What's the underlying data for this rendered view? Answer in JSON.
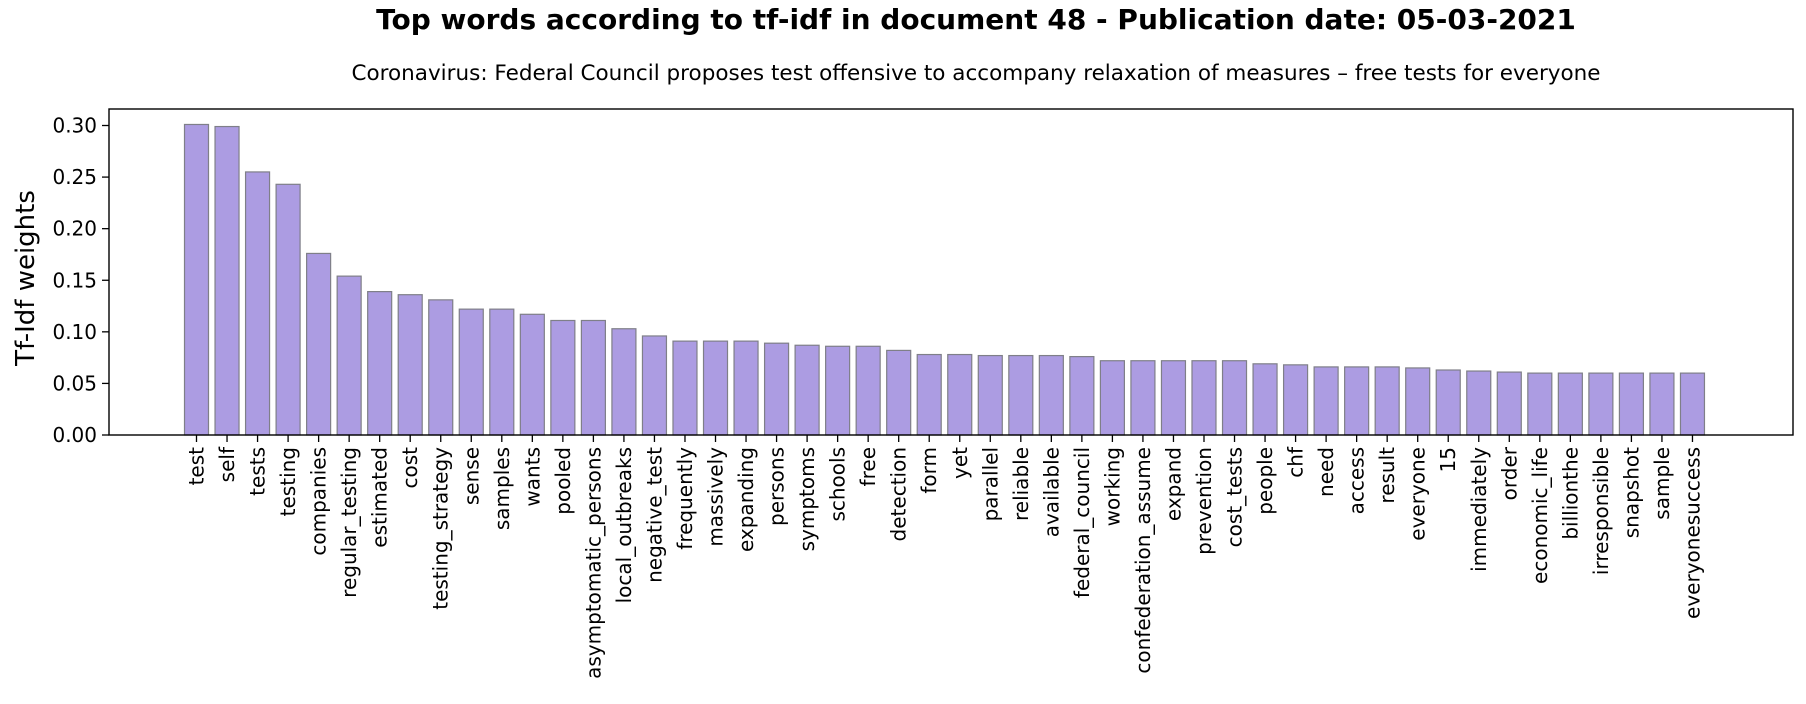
{
  "chart_data": {
    "type": "bar",
    "title": "Top words according to tf-idf in document 48 - Publication date: 05-03-2021",
    "subtitle": "Coronavirus: Federal Council proposes test offensive to accompany relaxation of measures – free tests for everyone",
    "xlabel": "",
    "ylabel": "Tf-Idf weights",
    "ylim": [
      0,
      0.316
    ],
    "yticks": [
      "0.00",
      "0.05",
      "0.10",
      "0.15",
      "0.20",
      "0.25",
      "0.30"
    ],
    "grid": false,
    "bar_color": "#ac9ce2",
    "bar_edge_color": "#7f7f88",
    "categories": [
      "test",
      "self",
      "tests",
      "testing",
      "companies",
      "regular_testing",
      "estimated",
      "cost",
      "testing_strategy",
      "sense",
      "samples",
      "wants",
      "pooled",
      "asymptomatic_persons",
      "local_outbreaks",
      "negative_test",
      "frequently",
      "massively",
      "expanding",
      "persons",
      "symptoms",
      "schools",
      "free",
      "detection",
      "form",
      "yet",
      "parallel",
      "reliable",
      "available",
      "federal_council",
      "working",
      "confederation_assume",
      "expand",
      "prevention",
      "cost_tests",
      "people",
      "chf",
      "need",
      "access",
      "result",
      "everyone",
      "15",
      "immediately",
      "order",
      "economic_life",
      "billionthe",
      "irresponsible",
      "snapshot",
      "sample",
      "everyonesuccess"
    ],
    "values": [
      0.301,
      0.299,
      0.255,
      0.243,
      0.176,
      0.154,
      0.139,
      0.136,
      0.131,
      0.122,
      0.122,
      0.117,
      0.111,
      0.111,
      0.103,
      0.096,
      0.091,
      0.091,
      0.091,
      0.089,
      0.087,
      0.086,
      0.086,
      0.082,
      0.078,
      0.078,
      0.077,
      0.077,
      0.077,
      0.076,
      0.072,
      0.072,
      0.072,
      0.072,
      0.072,
      0.069,
      0.068,
      0.066,
      0.066,
      0.066,
      0.065,
      0.063,
      0.062,
      0.061,
      0.06,
      0.06,
      0.06,
      0.06,
      0.06,
      0.06
    ]
  }
}
